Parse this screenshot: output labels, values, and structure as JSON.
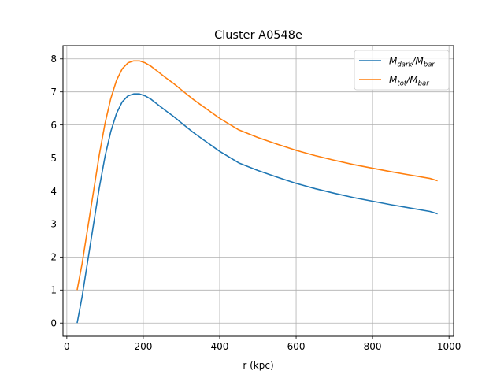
{
  "chart_data": {
    "type": "line",
    "title": "Cluster A0548e",
    "xlabel": "r (kpc)",
    "ylabel": "",
    "xlim": [
      -10,
      1012
    ],
    "ylim": [
      -0.4,
      8.4
    ],
    "xticks": [
      0,
      200,
      400,
      600,
      800,
      1000
    ],
    "yticks": [
      0,
      1,
      2,
      3,
      4,
      5,
      6,
      7,
      8
    ],
    "grid": true,
    "legend_position": "top-right",
    "series": [
      {
        "name": "M_dark/M_bar",
        "legend_main": "M",
        "legend_sub": "dark",
        "legend_main2": "/M",
        "legend_sub2": "bar",
        "color": "#1f77b4",
        "x": [
          27,
          40,
          55,
          70,
          85,
          100,
          115,
          130,
          145,
          160,
          175,
          190,
          205,
          220,
          240,
          260,
          280,
          300,
          330,
          360,
          400,
          450,
          500,
          550,
          600,
          650,
          700,
          750,
          800,
          850,
          900,
          950,
          970
        ],
        "y": [
          0,
          0.8,
          1.9,
          3.0,
          4.1,
          5.05,
          5.8,
          6.35,
          6.7,
          6.88,
          6.94,
          6.94,
          6.88,
          6.78,
          6.6,
          6.42,
          6.25,
          6.06,
          5.78,
          5.53,
          5.2,
          4.85,
          4.62,
          4.42,
          4.23,
          4.07,
          3.93,
          3.8,
          3.69,
          3.58,
          3.48,
          3.38,
          3.31
        ]
      },
      {
        "name": "M_tot/M_bar",
        "legend_main": "M",
        "legend_sub": "tot",
        "legend_main2": "/M",
        "legend_sub2": "bar",
        "color": "#ff7f0e",
        "x": [
          27,
          40,
          55,
          70,
          85,
          100,
          115,
          130,
          145,
          160,
          175,
          190,
          205,
          220,
          240,
          260,
          280,
          300,
          330,
          360,
          400,
          450,
          500,
          550,
          600,
          650,
          700,
          750,
          800,
          850,
          900,
          950,
          970
        ],
        "y": [
          1.0,
          1.8,
          2.9,
          4.0,
          5.1,
          6.05,
          6.8,
          7.35,
          7.7,
          7.88,
          7.94,
          7.94,
          7.88,
          7.78,
          7.6,
          7.42,
          7.25,
          7.06,
          6.78,
          6.53,
          6.2,
          5.85,
          5.62,
          5.42,
          5.23,
          5.07,
          4.93,
          4.8,
          4.69,
          4.58,
          4.48,
          4.38,
          4.31
        ]
      }
    ]
  }
}
